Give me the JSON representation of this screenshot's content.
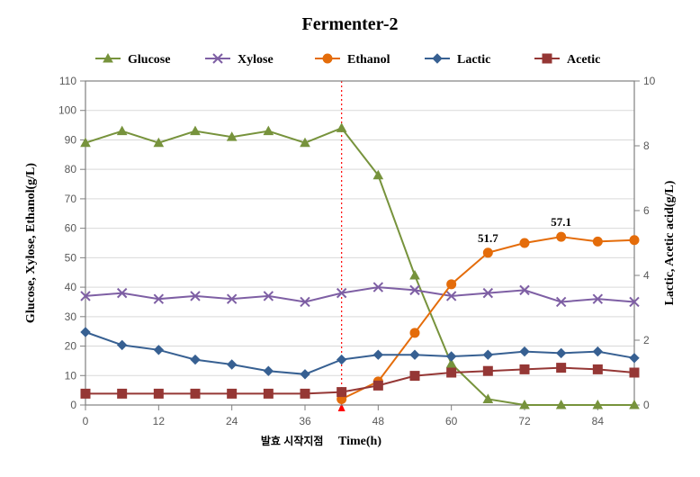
{
  "chart": {
    "type": "line",
    "title": "Fermenter-2",
    "title_fontsize": 20,
    "xlabel": "Time(h)",
    "ylabel_left": "Glucose, Xylose, Ethanol(g/L)",
    "ylabel_right": "Lactic, Acetic acid(g/L)",
    "label_fontsize": 14,
    "tick_fontsize": 12,
    "background_color": "#ffffff",
    "plot_border_color": "#808080",
    "grid_color": "#d9d9d9",
    "axis_text_color": "#595959",
    "x": [
      0,
      6,
      12,
      18,
      24,
      30,
      36,
      42,
      48,
      54,
      60,
      66,
      72,
      78,
      84,
      90
    ],
    "xlim": [
      0,
      90
    ],
    "xtick_step": 12,
    "y_left_lim": [
      0,
      110
    ],
    "y_left_tick_step": 10,
    "y_right_lim": [
      0,
      10
    ],
    "y_right_tick_step": 2,
    "marker_size": 5,
    "line_width": 2,
    "series": [
      {
        "name": "Glucose",
        "axis": "left",
        "color": "#77933c",
        "marker": "triangle",
        "y": [
          89,
          93,
          89,
          93,
          91,
          93,
          89,
          94,
          78,
          44,
          14,
          2,
          0,
          0,
          0,
          0
        ]
      },
      {
        "name": "Xylose",
        "axis": "left",
        "color": "#7e5fa4",
        "marker": "x",
        "y": [
          37,
          38,
          36,
          37,
          36,
          37,
          35,
          38,
          40,
          39,
          37,
          38,
          39,
          35,
          36,
          35
        ]
      },
      {
        "name": "Ethanol",
        "axis": "left",
        "color": "#e46c0a",
        "marker": "circle",
        "y": [
          null,
          null,
          null,
          null,
          null,
          null,
          null,
          2,
          8,
          24.5,
          41,
          51.7,
          55,
          57.1,
          55.5,
          56
        ]
      },
      {
        "name": "Lactic",
        "axis": "right",
        "color": "#376092",
        "marker": "diamond",
        "y": [
          2.25,
          1.85,
          1.7,
          1.4,
          1.25,
          1.05,
          0.95,
          1.4,
          1.55,
          1.55,
          1.5,
          1.55,
          1.65,
          1.6,
          1.65,
          1.45
        ]
      },
      {
        "name": "Acetic",
        "axis": "right",
        "color": "#953735",
        "marker": "square",
        "y": [
          0.35,
          0.35,
          0.35,
          0.35,
          0.35,
          0.35,
          0.35,
          0.4,
          0.6,
          0.9,
          1.0,
          1.05,
          1.1,
          1.15,
          1.1,
          1.0
        ]
      }
    ],
    "data_labels": [
      {
        "series": "Ethanol",
        "x": 66,
        "y": 51.7,
        "text": "51.7"
      },
      {
        "series": "Ethanol",
        "x": 78,
        "y": 57.1,
        "text": "57.1"
      }
    ],
    "vertical_marker": {
      "x": 42,
      "color": "#ff0000",
      "dash": "2,3",
      "annotation": "발효 시작지점",
      "annotation_color": "#000"
    }
  }
}
